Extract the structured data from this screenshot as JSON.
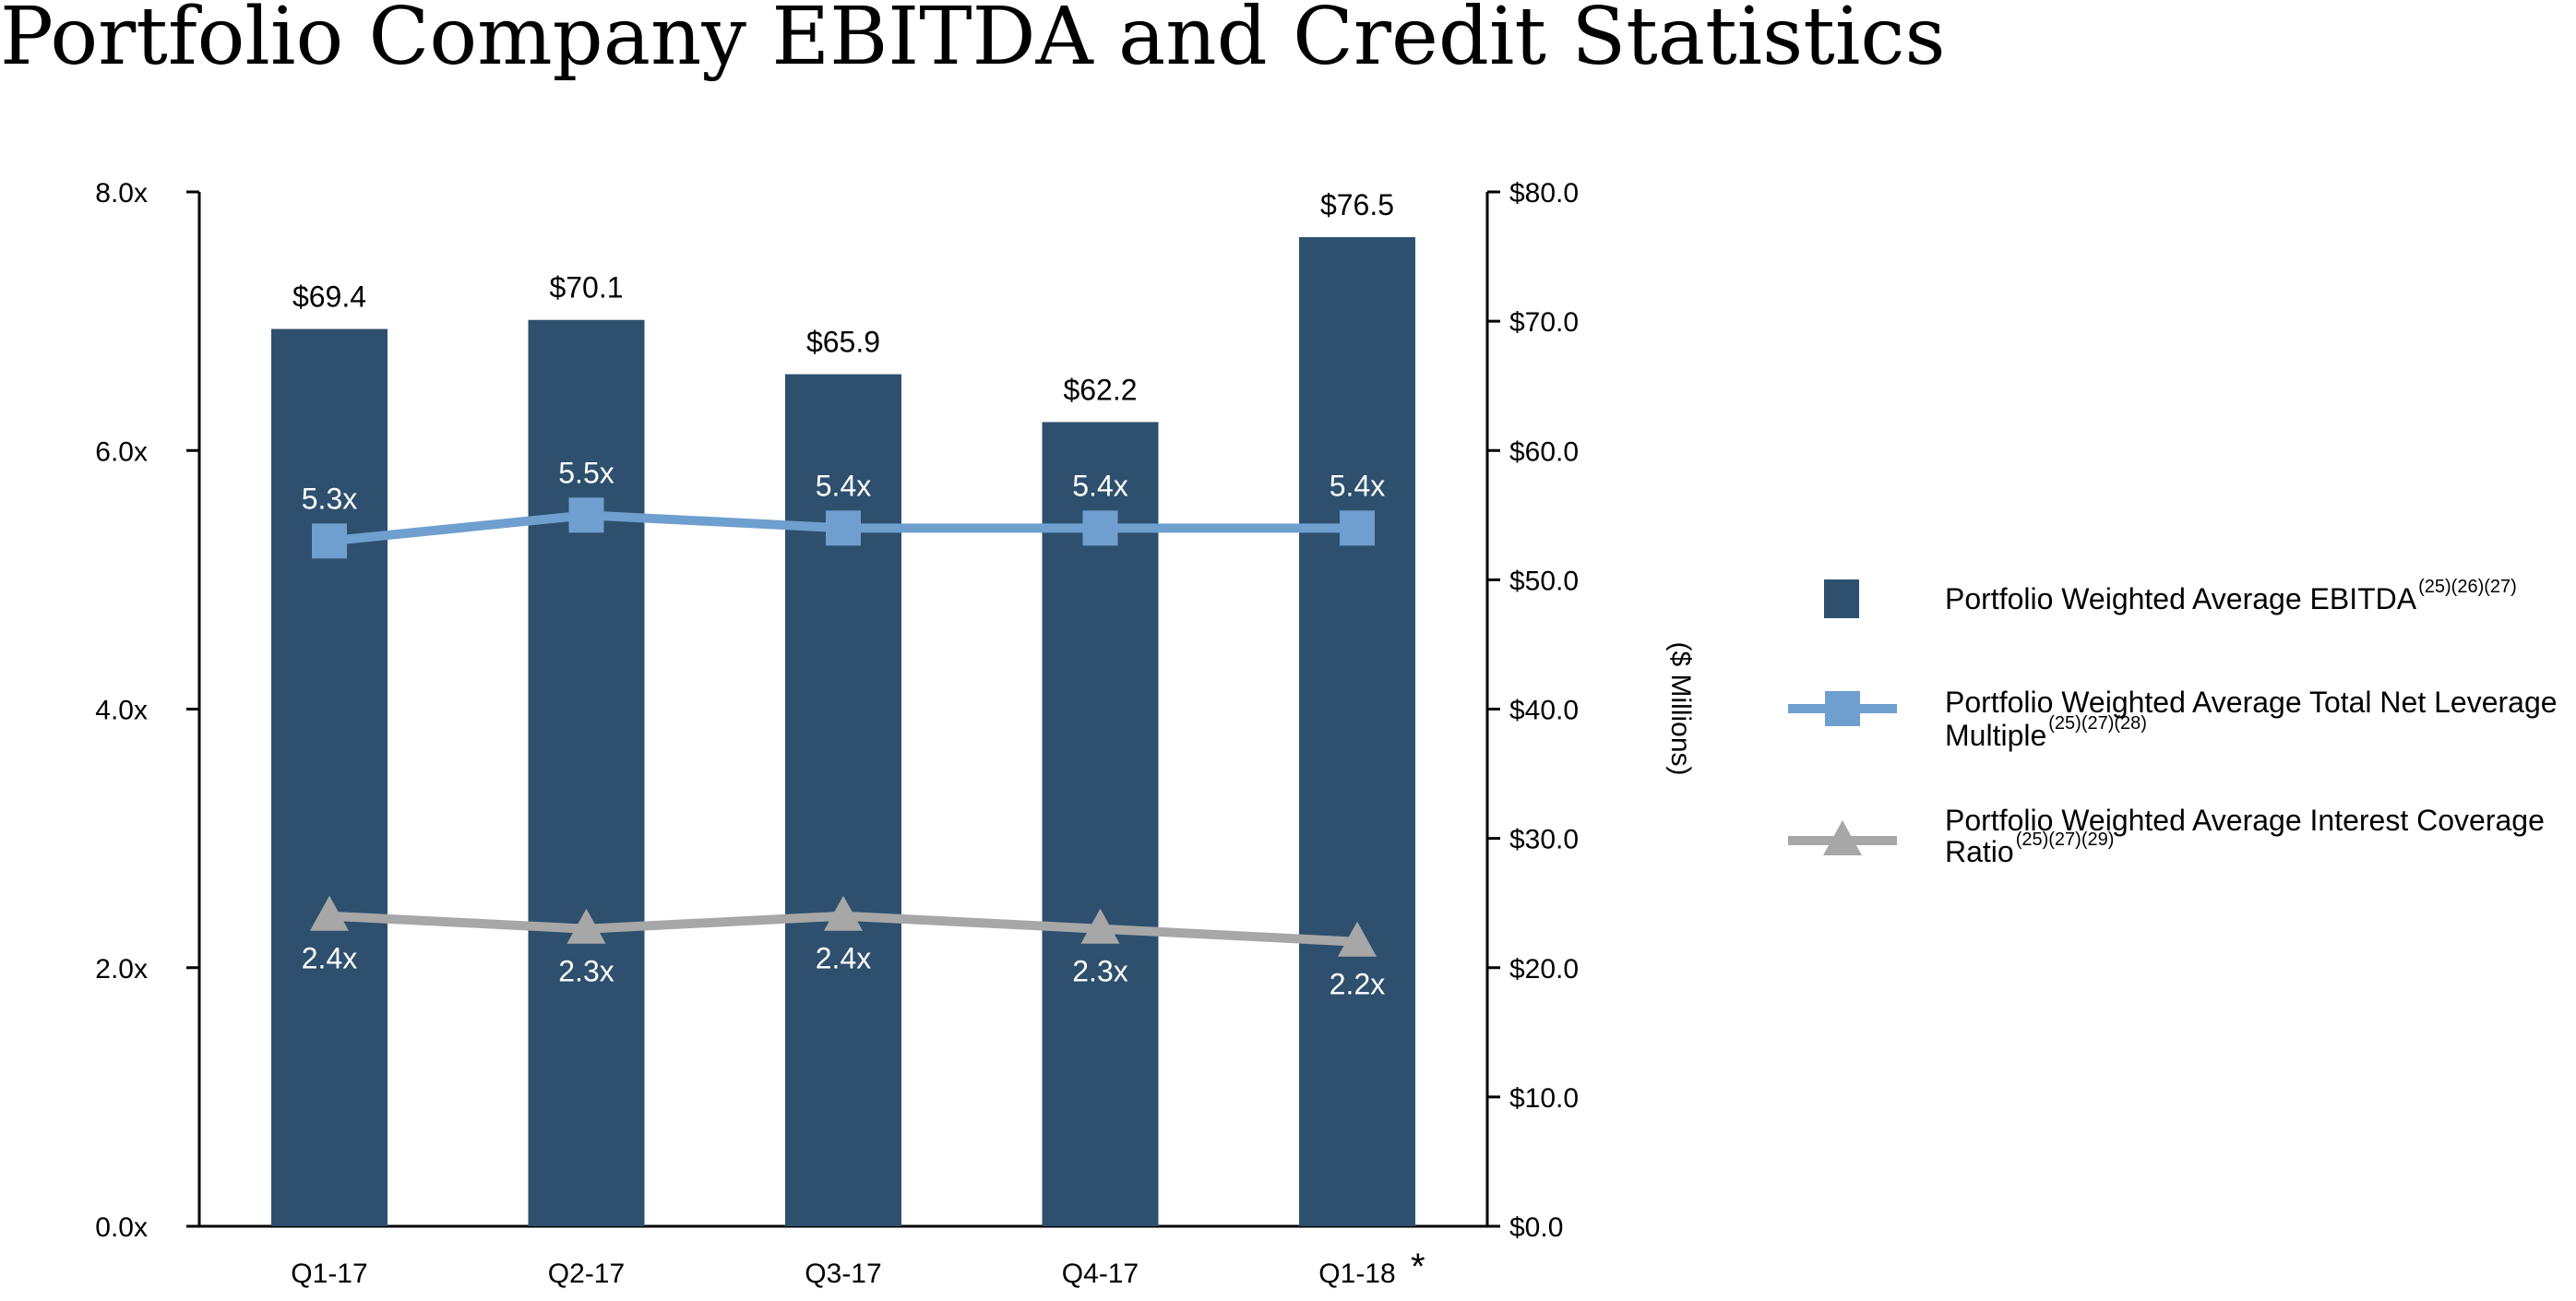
{
  "page": {
    "title": "Portfolio Company EBITDA and Credit Statistics"
  },
  "chart_data": {
    "type": "bar",
    "categories": [
      "Q1-17",
      "Q2-17",
      "Q3-17",
      "Q4-17",
      "Q1-18"
    ],
    "category_marks": [
      "",
      "",
      "",
      "",
      "*"
    ],
    "bar_series": {
      "name": "Portfolio Weighted Average EBITDA",
      "legend_refs": "(25)(26)(27)",
      "values": [
        69.4,
        70.1,
        65.9,
        62.2,
        76.5
      ],
      "labels": [
        "$69.4",
        "$70.1",
        "$65.9",
        "$62.2",
        "$76.5"
      ],
      "axis": "right",
      "color": "#2e506e"
    },
    "line_series": [
      {
        "name": "Portfolio Weighted Average Total Net Leverage Multiple",
        "legend_lines": [
          "Portfolio Weighted Average Total Net Leverage",
          "Multiple"
        ],
        "legend_refs": "(25)(27)(28)",
        "values": [
          5.3,
          5.5,
          5.4,
          5.4,
          5.4
        ],
        "labels": [
          "5.3x",
          "5.5x",
          "5.4x",
          "5.4x",
          "5.4x"
        ],
        "axis": "left",
        "marker": "square",
        "color": "#6f9fcf",
        "label_position": "above"
      },
      {
        "name": "Portfolio Weighted Average Interest Coverage Ratio",
        "legend_lines": [
          "Portfolio Weighted Average Interest Coverage",
          "Ratio"
        ],
        "legend_refs": "(25)(27)(29)",
        "values": [
          2.4,
          2.3,
          2.4,
          2.3,
          2.2
        ],
        "labels": [
          "2.4x",
          "2.3x",
          "2.4x",
          "2.3x",
          "2.2x"
        ],
        "axis": "left",
        "marker": "triangle",
        "color": "#a7a7a7",
        "label_position": "below"
      }
    ],
    "left_axis": {
      "ticks": [
        "0.0x",
        "2.0x",
        "4.0x",
        "6.0x",
        "8.0x"
      ],
      "ylim": [
        0,
        8
      ]
    },
    "right_axis": {
      "title": "($ Millions)",
      "ticks": [
        "$0.0",
        "$10.0",
        "$20.0",
        "$30.0",
        "$40.0",
        "$50.0",
        "$60.0",
        "$70.0",
        "$80.0"
      ],
      "ylim": [
        0,
        80
      ]
    },
    "legend_placement": "right",
    "grid": false
  }
}
